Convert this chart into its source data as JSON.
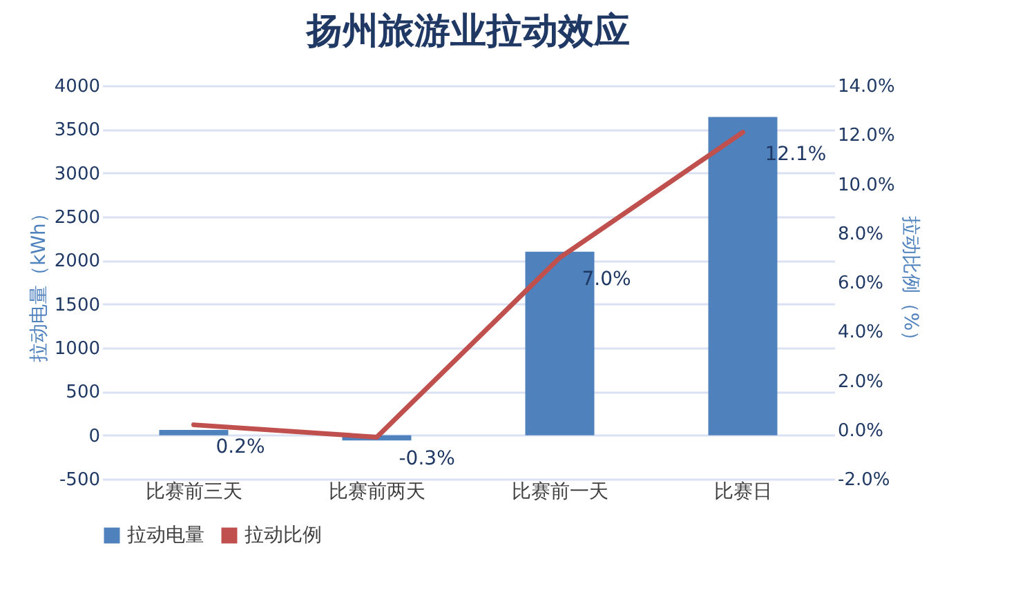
{
  "chart_data": {
    "type": "bar",
    "title": "扬州旅游业拉动效应",
    "categories": [
      "比赛前三天",
      "比赛前两天",
      "比赛前一天",
      "比赛日"
    ],
    "series": [
      {
        "name": "拉动电量",
        "color": "#4f81bd",
        "values": [
          60,
          -60,
          2100,
          3640
        ]
      },
      {
        "name": "拉动比例",
        "type": "line",
        "axis": "y2",
        "color": "#c0504d",
        "values": [
          0.2,
          -0.3,
          7.0,
          12.1
        ],
        "value_labels": [
          "0.2%",
          "-0.3%",
          "7.0%",
          "12.1%"
        ]
      }
    ],
    "ylabel": "拉动电量（kWh）",
    "y2label": "拉动比例（%）",
    "ylim": [
      -500,
      4000
    ],
    "yticks": [
      -500,
      0,
      500,
      1000,
      1500,
      2000,
      2500,
      3000,
      3500,
      4000
    ],
    "y2lim": [
      -2,
      14
    ],
    "y2ticks": [
      {
        "value": -2,
        "label": "-2.0%"
      },
      {
        "value": 0,
        "label": "0.0%"
      },
      {
        "value": 2,
        "label": "2.0%"
      },
      {
        "value": 4,
        "label": "4.0%"
      },
      {
        "value": 6,
        "label": "6.0%"
      },
      {
        "value": 8,
        "label": "8.0%"
      },
      {
        "value": 10,
        "label": "10.0%"
      },
      {
        "value": 12,
        "label": "12.0%"
      },
      {
        "value": 14,
        "label": "14.0%"
      }
    ],
    "grid": "y",
    "legend": "bottom"
  }
}
